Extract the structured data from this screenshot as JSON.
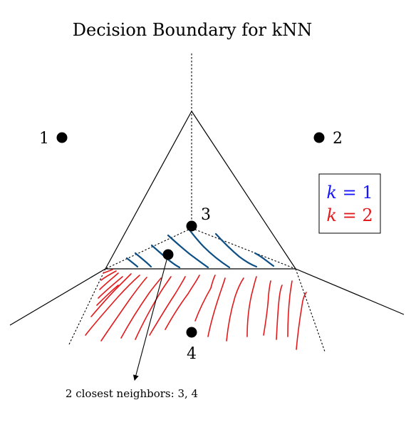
{
  "title": "Decision Boundary for kNN",
  "points": [
    {
      "label": "1"
    },
    {
      "label": "2"
    },
    {
      "label": "3"
    },
    {
      "label": "4"
    },
    {
      "label": ""
    }
  ],
  "legend": {
    "k1_var": "k",
    "k1_rest": " = 1",
    "k2_var": "k",
    "k2_rest": " = 2",
    "k1_color": "#1515ff",
    "k2_color": "#e31a1c"
  },
  "hatch_colors": {
    "k1_region": "#0d4f85",
    "k2_region": "#e31a1c"
  },
  "annotation": "2 closest neighbors: 3, 4"
}
